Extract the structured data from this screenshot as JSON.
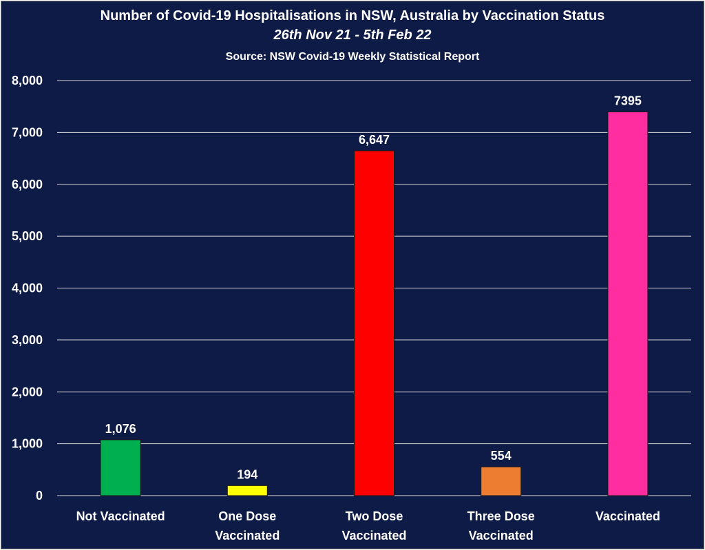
{
  "chart_data": {
    "type": "bar",
    "title": "Number of Covid-19 Hospitalisations in NSW, Australia by Vaccination Status",
    "subtitle": "26th Nov 21 - 5th Feb 22",
    "source": "Source: NSW Covid-19 Weekly Statistical Report",
    "categories": [
      [
        "Not Vaccinated"
      ],
      [
        "One Dose",
        "Vaccinated"
      ],
      [
        "Two Dose",
        "Vaccinated"
      ],
      [
        "Three Dose",
        "Vaccinated"
      ],
      [
        "Vaccinated"
      ]
    ],
    "values": [
      1076,
      194,
      6647,
      554,
      7395
    ],
    "data_labels": [
      "1,076",
      "194",
      "6,647",
      "554",
      "7395"
    ],
    "colors": [
      "#00b050",
      "#ffff00",
      "#ff0000",
      "#ed7d31",
      "#ff2da0"
    ],
    "yticks": [
      "0",
      "1,000",
      "2,000",
      "3,000",
      "4,000",
      "5,000",
      "6,000",
      "7,000",
      "8,000"
    ],
    "ylim": [
      0,
      8000
    ],
    "grid": true,
    "legend": "none"
  },
  "style": {
    "background": "#0f1b47",
    "text_color": "#ffffff",
    "grid_color": "#d9d9d9"
  }
}
